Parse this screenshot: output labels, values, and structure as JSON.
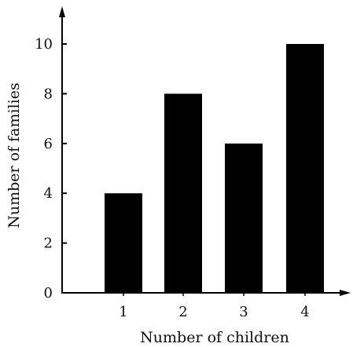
{
  "colors": {
    "bar": "#000000",
    "axis": "#000000",
    "background": "#ffffff"
  },
  "chart_data": {
    "type": "bar",
    "categories": [
      "1",
      "2",
      "3",
      "4"
    ],
    "values": [
      4,
      8,
      6,
      10
    ],
    "title": "",
    "xlabel": "Number of children",
    "ylabel": "Number of families",
    "ylim": [
      0,
      11
    ],
    "yticks": [
      0,
      2,
      4,
      6,
      8,
      10
    ],
    "grid": false,
    "legend": "none"
  }
}
